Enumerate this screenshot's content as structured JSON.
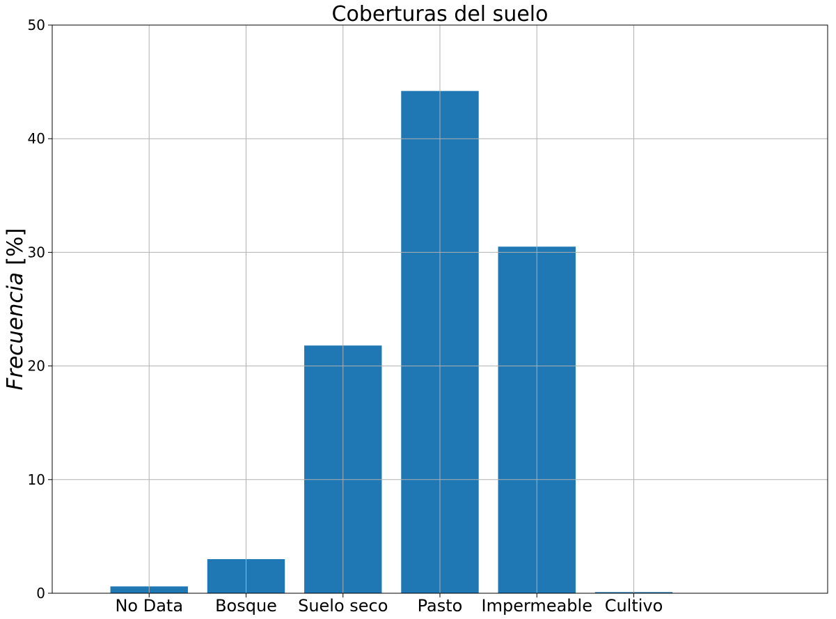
{
  "chart_data": {
    "type": "bar",
    "title": "Coberturas del suelo",
    "ylabel_italic": "Frecuencia",
    "ylabel_unit": " [%]",
    "xlabel": "",
    "categories": [
      "No Data",
      "Bosque",
      "Suelo seco",
      "Pasto",
      "Impermeable",
      "Cultivo"
    ],
    "values": [
      0.6,
      3.0,
      21.8,
      44.2,
      30.5,
      0.1
    ],
    "ylim": [
      0,
      50
    ],
    "yticks": [
      0,
      10,
      20,
      30,
      40,
      50
    ],
    "grid": true,
    "colors": {
      "bar": "#1f77b4",
      "grid": "#b0b0b0",
      "axis": "#000000"
    }
  }
}
